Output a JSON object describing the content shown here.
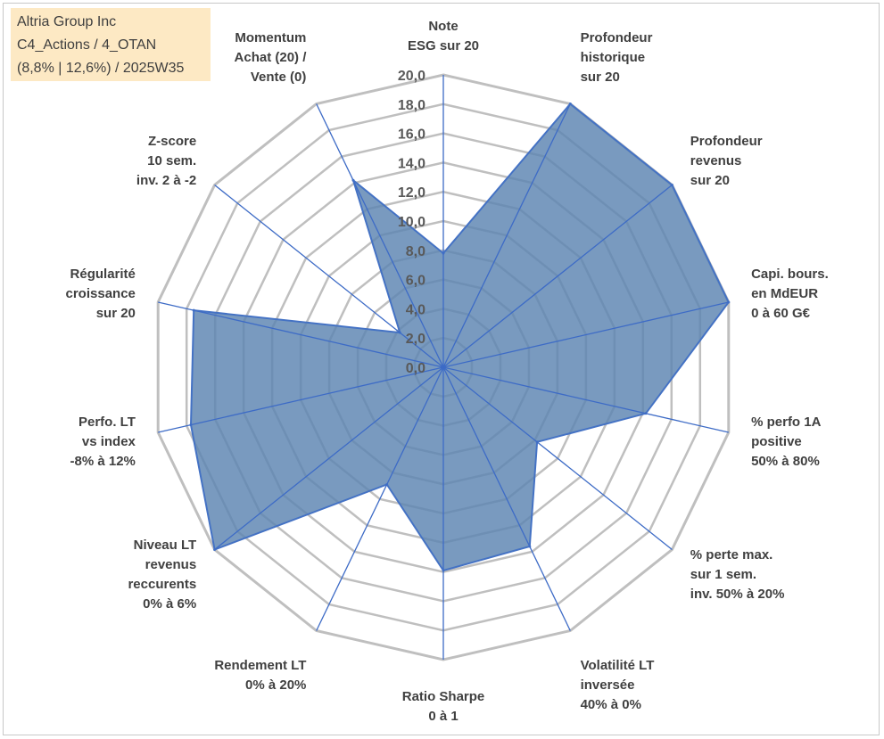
{
  "title_box": {
    "line1": "Altria Group Inc",
    "line2": "C4_Actions / 4_OTAN",
    "line3": "(8,8% | 12,6%) / 2025W35"
  },
  "colors": {
    "fill": "#5b84b1",
    "stroke": "#4472c4",
    "spoke": "#3d6bc6",
    "grid": "#bfbfbf",
    "title_bg": "#fde9c4"
  },
  "chart_data": {
    "type": "radar",
    "range": [
      0,
      20
    ],
    "tick_step": 2,
    "tick_labels": [
      "0,0",
      "2,0",
      "4,0",
      "6,0",
      "8,0",
      "10,0",
      "12,0",
      "14,0",
      "16,0",
      "18,0",
      "20,0"
    ],
    "grid": true,
    "axes": [
      {
        "label": [
          "Note",
          "ESG sur 20"
        ],
        "value": 7.8
      },
      {
        "label": [
          "Profondeur",
          "historique",
          "sur 20"
        ],
        "value": 20
      },
      {
        "label": [
          "Profondeur",
          "revenus",
          "sur 20"
        ],
        "value": 20
      },
      {
        "label": [
          "Capi. bours.",
          "en MdEUR",
          "0 à 60 G€"
        ],
        "value": 20
      },
      {
        "label": [
          "% perfo 1A",
          "positive",
          "50% à 80%"
        ],
        "value": 14.2
      },
      {
        "label": [
          "% perte max.",
          "sur 1 sem.",
          "inv. 50% à 20%"
        ],
        "value": 8.2
      },
      {
        "label": [
          "Volatilité LT",
          "inversée",
          "40% à 0%"
        ],
        "value": 13.6
      },
      {
        "label": [
          "Ratio Sharpe",
          "0 à 1"
        ],
        "value": 13.9
      },
      {
        "label": [
          "Rendement LT",
          "0% à 20%"
        ],
        "value": 8.9
      },
      {
        "label": [
          "Niveau LT",
          "revenus",
          "reccurents",
          "0% à 6%"
        ],
        "value": 20
      },
      {
        "label": [
          "Perfo. LT",
          "vs index",
          "-8% à 12%"
        ],
        "value": 17.7
      },
      {
        "label": [
          "Régularité",
          "croissance",
          "sur 20"
        ],
        "value": 17.5
      },
      {
        "label": [
          "Z-score",
          "10 sem.",
          "inv. 2 à -2"
        ],
        "value": 3.8
      },
      {
        "label": [
          "Momentum",
          "Achat (20) /",
          "Vente (0)"
        ],
        "value": 14.2
      }
    ]
  }
}
